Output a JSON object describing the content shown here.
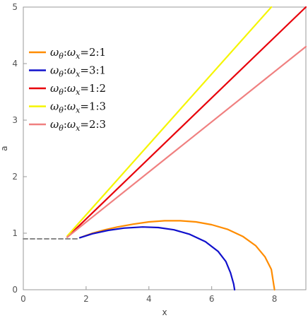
{
  "chart_data": {
    "type": "line",
    "title": "",
    "xlabel": "x",
    "ylabel": "a",
    "xlim": [
      0,
      9
    ],
    "ylim": [
      0,
      5
    ],
    "x_ticks": [
      0,
      2,
      4,
      6,
      8
    ],
    "y_ticks": [
      0,
      1,
      2,
      3,
      4,
      5
    ],
    "x_tick_labels": [
      "0",
      "2",
      "4",
      "6",
      "8"
    ],
    "y_tick_labels": [
      "0",
      "1",
      "2",
      "3",
      "4",
      "5"
    ],
    "grid": false,
    "legend_position": "top-left",
    "series": [
      {
        "name": "ωθ:ωx=2:1",
        "label_html": "<tspan font-style='italic'>ω</tspan><tspan font-style='italic' font-size='10' dy='4'>θ</tspan><tspan dy='-4'>:</tspan><tspan font-style='italic'>ω</tspan><tspan font-style='italic' font-size='10' dy='4'>x</tspan><tspan dy='-4'>=2:1</tspan>",
        "color": "#ff8c00",
        "dashed": false,
        "points": [
          [
            1.8,
            0.92
          ],
          [
            2.2,
            1.0
          ],
          [
            2.6,
            1.06
          ],
          [
            3.0,
            1.11
          ],
          [
            3.5,
            1.16
          ],
          [
            4.0,
            1.2
          ],
          [
            4.5,
            1.22
          ],
          [
            5.0,
            1.22
          ],
          [
            5.5,
            1.2
          ],
          [
            6.0,
            1.15
          ],
          [
            6.5,
            1.07
          ],
          [
            7.0,
            0.94
          ],
          [
            7.4,
            0.78
          ],
          [
            7.7,
            0.58
          ],
          [
            7.9,
            0.36
          ],
          [
            8.0,
            0.0
          ]
        ]
      },
      {
        "name": "ωθ:ωx=3:1",
        "color": "#1010cc",
        "dashed": false,
        "points": [
          [
            1.8,
            0.92
          ],
          [
            2.2,
            0.99
          ],
          [
            2.7,
            1.05
          ],
          [
            3.2,
            1.09
          ],
          [
            3.8,
            1.11
          ],
          [
            4.3,
            1.1
          ],
          [
            4.8,
            1.06
          ],
          [
            5.3,
            0.98
          ],
          [
            5.8,
            0.85
          ],
          [
            6.2,
            0.68
          ],
          [
            6.45,
            0.5
          ],
          [
            6.6,
            0.3
          ],
          [
            6.7,
            0.1
          ],
          [
            6.73,
            0.0
          ]
        ]
      },
      {
        "name": "ωθ:ωx=1:2",
        "color": "#e8000b",
        "dashed": false,
        "points": [
          [
            1.4,
            0.93
          ],
          [
            9.0,
            5.0
          ]
        ]
      },
      {
        "name": "ωθ:ωx=1:3",
        "color": "#f5f500",
        "dashed": false,
        "points": [
          [
            1.4,
            0.95
          ],
          [
            7.9,
            5.0
          ]
        ]
      },
      {
        "name": "ωθ:ωx=2:3",
        "color": "#f08080",
        "dashed": false,
        "points": [
          [
            1.4,
            0.93
          ],
          [
            9.0,
            4.3
          ]
        ]
      },
      {
        "color": "#888888",
        "dashed": true,
        "points": [
          [
            0.0,
            0.9
          ],
          [
            1.75,
            0.9
          ]
        ]
      }
    ]
  },
  "legend": [
    {
      "color": "#ff8c00",
      "sub1": "θ",
      "sub2": "x",
      "ratio": "=2:1"
    },
    {
      "color": "#1010cc",
      "sub1": "θ",
      "sub2": "x",
      "ratio": "=3:1"
    },
    {
      "color": "#e8000b",
      "sub1": "θ",
      "sub2": "x",
      "ratio": "=1:2"
    },
    {
      "color": "#f5f500",
      "sub1": "θ",
      "sub2": "x",
      "ratio": "=1:3"
    },
    {
      "color": "#f08080",
      "sub1": "θ",
      "sub2": "x",
      "ratio": "=2:3"
    }
  ],
  "legend_symbol": "ω"
}
